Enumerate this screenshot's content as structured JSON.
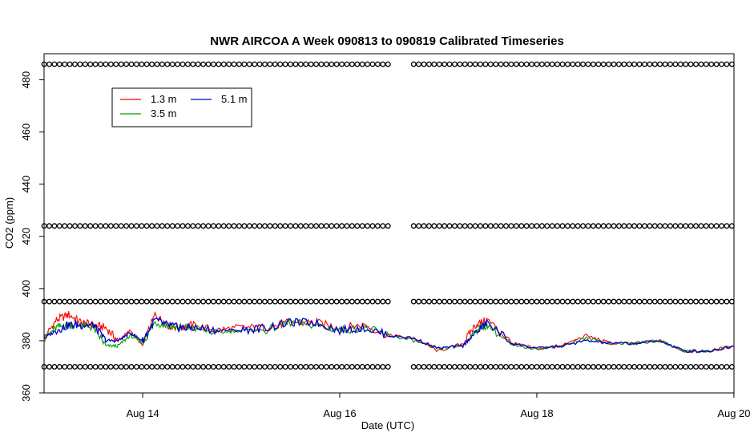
{
  "chart_data": {
    "type": "line",
    "title": "NWR AIRCOA A  Week 090813 to 090819  Calibrated Timeseries",
    "xlabel": "Date (UTC)",
    "ylabel": "CO2 (ppm)",
    "xlim": [
      "2009-08-12T23:59:00Z",
      "2009-08-20T00:01:00Z"
    ],
    "ylim": [
      360,
      490
    ],
    "x_ticks": [
      {
        "x": "2009-08-14T00:00:00Z",
        "label": "Aug 14"
      },
      {
        "x": "2009-08-16T00:00:00Z",
        "label": "Aug 16"
      },
      {
        "x": "2009-08-18T00:00:00Z",
        "label": "Aug 18"
      },
      {
        "x": "2009-08-20T00:00:00Z",
        "label": "Aug 20"
      }
    ],
    "y_ticks": [
      360,
      380,
      400,
      420,
      440,
      460,
      480
    ],
    "legend": {
      "position": "top-left",
      "entries": [
        {
          "label": "1.3 m",
          "color": "#ff0000"
        },
        {
          "label": "5.1 m",
          "color": "#0000cc"
        },
        {
          "label": "3.5 m",
          "color": "#00a000"
        }
      ]
    },
    "series": [
      {
        "name": "1.3 m",
        "color": "#ff0000",
        "x": [
          "2009-08-13T00:00:00Z",
          "2009-08-13T03:00:00Z",
          "2009-08-13T06:00:00Z",
          "2009-08-13T09:00:00Z",
          "2009-08-13T12:00:00Z",
          "2009-08-13T15:00:00Z",
          "2009-08-13T18:00:00Z",
          "2009-08-13T21:00:00Z",
          "2009-08-14T00:00:00Z",
          "2009-08-14T03:00:00Z",
          "2009-08-14T06:00:00Z",
          "2009-08-14T09:00:00Z",
          "2009-08-14T12:00:00Z",
          "2009-08-14T18:00:00Z",
          "2009-08-15T00:00:00Z",
          "2009-08-15T06:00:00Z",
          "2009-08-15T12:00:00Z",
          "2009-08-15T18:00:00Z",
          "2009-08-16T00:00:00Z",
          "2009-08-16T06:00:00Z",
          "2009-08-16T12:00:00Z",
          "2009-08-16T18:00:00Z",
          "2009-08-17T00:00:00Z",
          "2009-08-17T06:00:00Z",
          "2009-08-17T09:00:00Z",
          "2009-08-17T12:00:00Z",
          "2009-08-17T18:00:00Z",
          "2009-08-18T00:00:00Z",
          "2009-08-18T06:00:00Z",
          "2009-08-18T12:00:00Z",
          "2009-08-18T18:00:00Z",
          "2009-08-19T00:00:00Z",
          "2009-08-19T06:00:00Z",
          "2009-08-19T12:00:00Z",
          "2009-08-19T18:00:00Z",
          "2009-08-20T00:00:00Z"
        ],
        "values": [
          381,
          388,
          390,
          387,
          386,
          385,
          380,
          384,
          378,
          390,
          386,
          385,
          386,
          384,
          385,
          385,
          387,
          387,
          385,
          386,
          382,
          381,
          376,
          379,
          386,
          388,
          379,
          377,
          378,
          382,
          379,
          379,
          380,
          376,
          376,
          378
        ]
      },
      {
        "name": "3.5 m",
        "color": "#00a000",
        "x": [
          "2009-08-13T00:00:00Z",
          "2009-08-13T03:00:00Z",
          "2009-08-13T06:00:00Z",
          "2009-08-13T09:00:00Z",
          "2009-08-13T12:00:00Z",
          "2009-08-13T15:00:00Z",
          "2009-08-13T18:00:00Z",
          "2009-08-13T21:00:00Z",
          "2009-08-14T00:00:00Z",
          "2009-08-14T03:00:00Z",
          "2009-08-14T06:00:00Z",
          "2009-08-14T09:00:00Z",
          "2009-08-14T12:00:00Z",
          "2009-08-14T18:00:00Z",
          "2009-08-15T00:00:00Z",
          "2009-08-15T06:00:00Z",
          "2009-08-15T12:00:00Z",
          "2009-08-15T18:00:00Z",
          "2009-08-16T00:00:00Z",
          "2009-08-16T06:00:00Z",
          "2009-08-16T12:00:00Z",
          "2009-08-16T18:00:00Z",
          "2009-08-17T00:00:00Z",
          "2009-08-17T06:00:00Z",
          "2009-08-17T09:00:00Z",
          "2009-08-17T12:00:00Z",
          "2009-08-17T18:00:00Z",
          "2009-08-18T00:00:00Z",
          "2009-08-18T06:00:00Z",
          "2009-08-18T12:00:00Z",
          "2009-08-18T18:00:00Z",
          "2009-08-19T00:00:00Z",
          "2009-08-19T06:00:00Z",
          "2009-08-19T12:00:00Z",
          "2009-08-19T18:00:00Z",
          "2009-08-20T00:00:00Z"
        ],
        "values": [
          381,
          385,
          386,
          386,
          385,
          378,
          378,
          382,
          379,
          387,
          386,
          385,
          385,
          383,
          384,
          384,
          387,
          386,
          384,
          385,
          382,
          380,
          377,
          378,
          384,
          386,
          378,
          377,
          378,
          381,
          379,
          379,
          380,
          376,
          376,
          378
        ]
      },
      {
        "name": "5.1 m",
        "color": "#0000cc",
        "x": [
          "2009-08-13T00:00:00Z",
          "2009-08-13T03:00:00Z",
          "2009-08-13T06:00:00Z",
          "2009-08-13T09:00:00Z",
          "2009-08-13T12:00:00Z",
          "2009-08-13T15:00:00Z",
          "2009-08-13T18:00:00Z",
          "2009-08-13T21:00:00Z",
          "2009-08-14T00:00:00Z",
          "2009-08-14T03:00:00Z",
          "2009-08-14T06:00:00Z",
          "2009-08-14T09:00:00Z",
          "2009-08-14T12:00:00Z",
          "2009-08-14T18:00:00Z",
          "2009-08-15T00:00:00Z",
          "2009-08-15T06:00:00Z",
          "2009-08-15T12:00:00Z",
          "2009-08-15T18:00:00Z",
          "2009-08-16T00:00:00Z",
          "2009-08-16T06:00:00Z",
          "2009-08-16T12:00:00Z",
          "2009-08-16T18:00:00Z",
          "2009-08-17T00:00:00Z",
          "2009-08-17T06:00:00Z",
          "2009-08-17T09:00:00Z",
          "2009-08-17T12:00:00Z",
          "2009-08-17T18:00:00Z",
          "2009-08-18T00:00:00Z",
          "2009-08-18T06:00:00Z",
          "2009-08-18T12:00:00Z",
          "2009-08-18T18:00:00Z",
          "2009-08-19T00:00:00Z",
          "2009-08-19T06:00:00Z",
          "2009-08-19T12:00:00Z",
          "2009-08-19T18:00:00Z",
          "2009-08-20T00:00:00Z"
        ],
        "values": [
          381,
          384,
          386,
          386,
          386,
          380,
          380,
          383,
          380,
          388,
          386,
          385,
          385,
          384,
          384,
          385,
          387,
          387,
          384,
          385,
          382,
          381,
          377,
          378,
          383,
          387,
          379,
          377,
          378,
          380,
          379,
          379,
          380,
          376,
          376,
          378
        ]
      },
      {
        "name": "",
        "type": "scatter",
        "marker": "open-circle",
        "values_y": [
          370,
          395,
          424,
          486
        ],
        "x_start": "2009-08-13T00:00:00Z",
        "x_end": "2009-08-20T00:00:00Z",
        "gap": [
          "2009-08-16T12:00:00Z",
          "2009-08-16T18:00:00Z"
        ]
      }
    ]
  }
}
